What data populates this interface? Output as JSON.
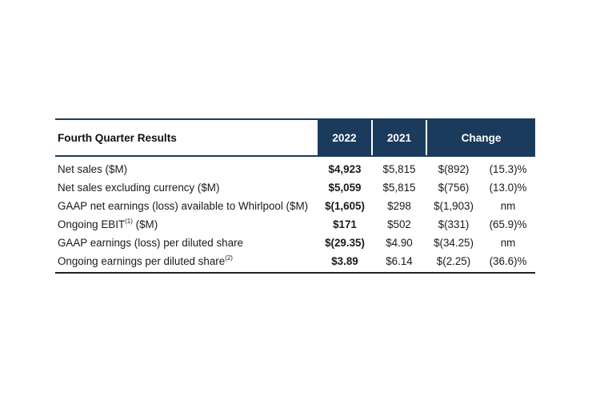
{
  "table": {
    "header": {
      "title": "Fourth Quarter Results",
      "col_2022": "2022",
      "col_2021": "2021",
      "col_change": "Change"
    },
    "rows": [
      {
        "label": "Net sales ($M)",
        "sup": "",
        "suffix": "",
        "v2022": "$4,923",
        "v2021": "$5,815",
        "change_abs": "$(892)",
        "change_pct": "(15.3)%"
      },
      {
        "label": "Net sales excluding currency ($M)",
        "sup": "",
        "suffix": "",
        "v2022": "$5,059",
        "v2021": "$5,815",
        "change_abs": "$(756)",
        "change_pct": "(13.0)%"
      },
      {
        "label": "GAAP net earnings (loss) available to Whirlpool ($M)",
        "sup": "",
        "suffix": "",
        "v2022": "$(1,605)",
        "v2021": "$298",
        "change_abs": "$(1,903)",
        "change_pct": "nm"
      },
      {
        "label": "Ongoing EBIT",
        "sup": "(1)",
        "suffix": " ($M)",
        "v2022": "$171",
        "v2021": "$502",
        "change_abs": "$(331)",
        "change_pct": "(65.9)%"
      },
      {
        "label": "GAAP earnings (loss) per diluted share",
        "sup": "",
        "suffix": "",
        "v2022": "$(29.35)",
        "v2021": "$4.90",
        "change_abs": "$(34.25)",
        "change_pct": "nm"
      },
      {
        "label": "Ongoing earnings per diluted share",
        "sup": "(2)",
        "suffix": "",
        "v2022": "$3.89",
        "v2021": "$6.14",
        "change_abs": "$(2.25)",
        "change_pct": "(36.6)%"
      }
    ]
  }
}
